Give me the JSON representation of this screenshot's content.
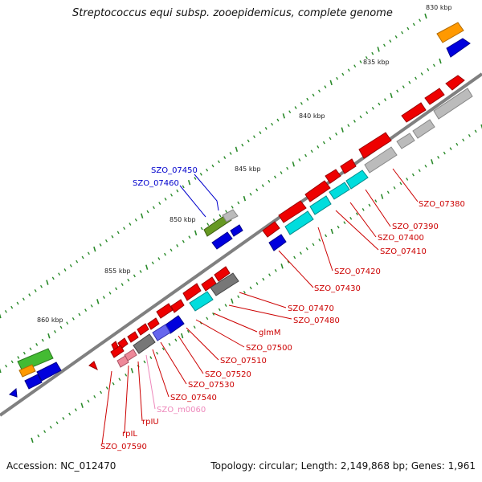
{
  "title": "Streptococcus equi subsp. zooepidemicus, complete genome",
  "accession": "Accession: NC_012470",
  "summary": "Topology: circular; Length: 2,149,868 bp; Genes: 1,961",
  "kbp_ticks": [
    "830 kbp",
    "835 kbp",
    "840 kbp",
    "845 kbp",
    "850 kbp",
    "855 kbp",
    "860 kbp"
  ],
  "gene_labels": [
    {
      "text": "SZO_07450",
      "color": "#0000cc"
    },
    {
      "text": "SZO_07460",
      "color": "#0000cc"
    },
    {
      "text": "SZO_07380",
      "color": "#cc0000"
    },
    {
      "text": "SZO_07390",
      "color": "#cc0000"
    },
    {
      "text": "SZO_07400",
      "color": "#cc0000"
    },
    {
      "text": "SZO_07410",
      "color": "#cc0000"
    },
    {
      "text": "SZO_07420",
      "color": "#cc0000"
    },
    {
      "text": "SZO_07430",
      "color": "#cc0000"
    },
    {
      "text": "SZO_07470",
      "color": "#cc0000"
    },
    {
      "text": "SZO_07480",
      "color": "#cc0000"
    },
    {
      "text": "glmM",
      "color": "#cc0000"
    },
    {
      "text": "SZO_07500",
      "color": "#cc0000"
    },
    {
      "text": "SZO_07510",
      "color": "#cc0000"
    },
    {
      "text": "SZO_07520",
      "color": "#cc0000"
    },
    {
      "text": "SZO_07530",
      "color": "#cc0000"
    },
    {
      "text": "SZO_07540",
      "color": "#cc0000"
    },
    {
      "text": "SZO_m0060",
      "color": "#ee88bb"
    },
    {
      "text": "rpIU",
      "color": "#cc0000"
    },
    {
      "text": "rpIL",
      "color": "#cc0000"
    },
    {
      "text": "SZO_07590",
      "color": "#cc0000"
    }
  ],
  "colors": {
    "axis": "#808080",
    "tick": "#2a8a2a",
    "red": "#ee0000",
    "blue": "#0000dd",
    "cyan": "#00dddd",
    "gray": "#bbbbbb",
    "dark_gray": "#777777",
    "orange": "#ff9900",
    "green": "#44bb33",
    "olive": "#669922",
    "pink": "#ee8899",
    "purple": "#6666ee"
  }
}
